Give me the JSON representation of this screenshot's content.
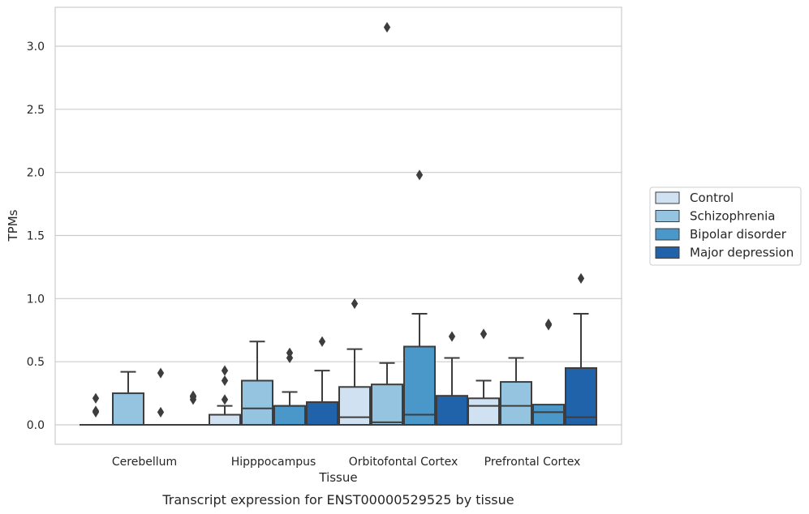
{
  "chart_data": {
    "type": "box",
    "title": "",
    "caption": "Transcript expression for ENST00000529525 by tissue",
    "xlabel": "Tissue",
    "ylabel": "TPMs",
    "ylim": [
      -0.15,
      3.3
    ],
    "yticks": [
      0.0,
      0.5,
      1.0,
      1.5,
      2.0,
      2.5,
      3.0
    ],
    "ytick_labels": [
      "0.0",
      "0.5",
      "1.0",
      "1.5",
      "2.0",
      "2.5",
      "3.0"
    ],
    "grid": "horizontal",
    "legend_position": "right",
    "categories": [
      "Cerebellum",
      "Hipppocampus",
      "Orbitofontal Cortex",
      "Prefrontal Cortex"
    ],
    "series": [
      {
        "name": "Control",
        "color": "#d0e1f2",
        "boxes": [
          {
            "q1": 0.0,
            "median": 0.0,
            "q3": 0.0,
            "whisker_low": 0.0,
            "whisker_high": 0.0,
            "outliers": [
              0.1,
              0.11,
              0.21
            ]
          },
          {
            "q1": 0.0,
            "median": 0.0,
            "q3": 0.08,
            "whisker_low": 0.0,
            "whisker_high": 0.15,
            "outliers": [
              0.2,
              0.35,
              0.43
            ]
          },
          {
            "q1": 0.0,
            "median": 0.06,
            "q3": 0.3,
            "whisker_low": 0.0,
            "whisker_high": 0.6,
            "outliers": [
              0.96
            ]
          },
          {
            "q1": 0.0,
            "median": 0.15,
            "q3": 0.21,
            "whisker_low": 0.0,
            "whisker_high": 0.35,
            "outliers": [
              0.72
            ]
          }
        ]
      },
      {
        "name": "Schizophrenia",
        "color": "#94c4df",
        "boxes": [
          {
            "q1": 0.0,
            "median": 0.0,
            "q3": 0.25,
            "whisker_low": 0.0,
            "whisker_high": 0.42,
            "outliers": []
          },
          {
            "q1": 0.0,
            "median": 0.13,
            "q3": 0.35,
            "whisker_low": 0.0,
            "whisker_high": 0.66,
            "outliers": []
          },
          {
            "q1": 0.0,
            "median": 0.02,
            "q3": 0.32,
            "whisker_low": 0.0,
            "whisker_high": 0.49,
            "outliers": [
              3.15
            ]
          },
          {
            "q1": 0.0,
            "median": 0.15,
            "q3": 0.34,
            "whisker_low": 0.0,
            "whisker_high": 0.53,
            "outliers": []
          }
        ]
      },
      {
        "name": "Bipolar disorder",
        "color": "#4a98c9",
        "boxes": [
          {
            "q1": 0.0,
            "median": 0.0,
            "q3": 0.0,
            "whisker_low": 0.0,
            "whisker_high": 0.0,
            "outliers": [
              0.1,
              0.41
            ]
          },
          {
            "q1": 0.0,
            "median": 0.15,
            "q3": 0.15,
            "whisker_low": 0.0,
            "whisker_high": 0.26,
            "outliers": [
              0.53,
              0.57
            ]
          },
          {
            "q1": 0.0,
            "median": 0.08,
            "q3": 0.62,
            "whisker_low": 0.0,
            "whisker_high": 0.88,
            "outliers": [
              1.98
            ]
          },
          {
            "q1": 0.0,
            "median": 0.1,
            "q3": 0.16,
            "whisker_low": 0.0,
            "whisker_high": 0.16,
            "outliers": [
              0.79,
              0.8
            ]
          }
        ]
      },
      {
        "name": "Major depression",
        "color": "#2163aa",
        "boxes": [
          {
            "q1": 0.0,
            "median": 0.0,
            "q3": 0.0,
            "whisker_low": 0.0,
            "whisker_high": 0.0,
            "outliers": [
              0.2,
              0.22,
              0.23
            ]
          },
          {
            "q1": 0.0,
            "median": 0.0,
            "q3": 0.18,
            "whisker_low": 0.0,
            "whisker_high": 0.43,
            "outliers": [
              0.66
            ]
          },
          {
            "q1": 0.0,
            "median": 0.0,
            "q3": 0.23,
            "whisker_low": 0.0,
            "whisker_high": 0.53,
            "outliers": [
              0.7
            ]
          },
          {
            "q1": 0.0,
            "median": 0.06,
            "q3": 0.45,
            "whisker_low": 0.0,
            "whisker_high": 0.88,
            "outliers": [
              1.16
            ]
          }
        ]
      }
    ]
  }
}
